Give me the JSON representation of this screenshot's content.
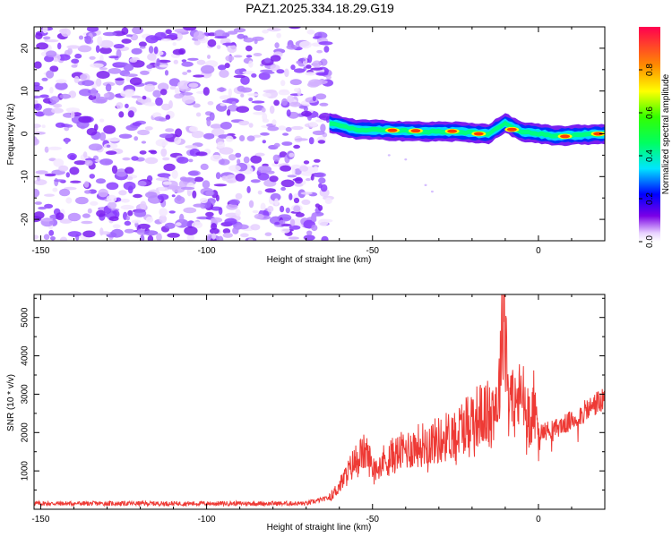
{
  "title": "PAZ1.2025.334.18.29.G19",
  "chart_data": [
    {
      "type": "heatmap",
      "xlabel": "Height of straight line (km)",
      "ylabel": "Frequency (Hz)",
      "xlim": [
        -152,
        20
      ],
      "ylim": [
        -25,
        25
      ],
      "xticks": [
        -150,
        -100,
        -50,
        0
      ],
      "yticks": [
        -20,
        -10,
        0,
        10,
        20
      ],
      "colorbar": {
        "label": "Normalized spectral amplitude",
        "range": [
          0,
          1
        ],
        "ticks": [
          0.0,
          0.2,
          0.4,
          0.6,
          0.8
        ]
      },
      "noise_region_x": [
        -152,
        -63
      ],
      "ridge_region_x": [
        -63,
        20
      ],
      "ridge_center_hz": [
        [
          -63,
          2.5
        ],
        [
          -55,
          1.0
        ],
        [
          -45,
          0.8
        ],
        [
          -35,
          0.5
        ],
        [
          -25,
          0.5
        ],
        [
          -15,
          0.0
        ],
        [
          -10,
          2.5
        ],
        [
          -5,
          0.5
        ],
        [
          5,
          -0.5
        ],
        [
          20,
          0.0
        ]
      ],
      "ridge_peaks": [
        {
          "x": -44,
          "y": 0.8,
          "amp": 0.98
        },
        {
          "x": -37,
          "y": 0.7,
          "amp": 0.95
        },
        {
          "x": -26,
          "y": 0.6,
          "amp": 0.97
        },
        {
          "x": -18,
          "y": 0.0,
          "amp": 0.99
        },
        {
          "x": -8,
          "y": 1.0,
          "amp": 0.9
        },
        {
          "x": 8,
          "y": -0.6,
          "amp": 0.97
        },
        {
          "x": 18,
          "y": 0.0,
          "amp": 0.95
        }
      ]
    },
    {
      "type": "line",
      "xlabel": "Height of straight line (km)",
      "ylabel": "SNR (10 * v/v)",
      "xlim": [
        -152,
        20
      ],
      "ylim": [
        0,
        5600
      ],
      "xticks": [
        -150,
        -100,
        -50,
        0
      ],
      "yticks": [
        1000,
        2000,
        3000,
        4000,
        5000
      ],
      "color": "#ee3a35",
      "series": [
        {
          "name": "SNR",
          "x": [
            -152,
            -130,
            -110,
            -90,
            -70,
            -63,
            -60,
            -55,
            -52,
            -50,
            -45,
            -40,
            -35,
            -30,
            -25,
            -20,
            -15,
            -12,
            -10.5,
            -9,
            -7,
            -5,
            -3,
            -1,
            0,
            5,
            10,
            15,
            18,
            20
          ],
          "y": [
            150,
            150,
            150,
            150,
            150,
            300,
            600,
            1300,
            1500,
            1100,
            1350,
            1550,
            1700,
            1800,
            2000,
            2400,
            2500,
            2900,
            5400,
            3200,
            2700,
            3000,
            2400,
            2800,
            2000,
            2100,
            2300,
            2600,
            2800,
            2800
          ]
        }
      ]
    }
  ]
}
